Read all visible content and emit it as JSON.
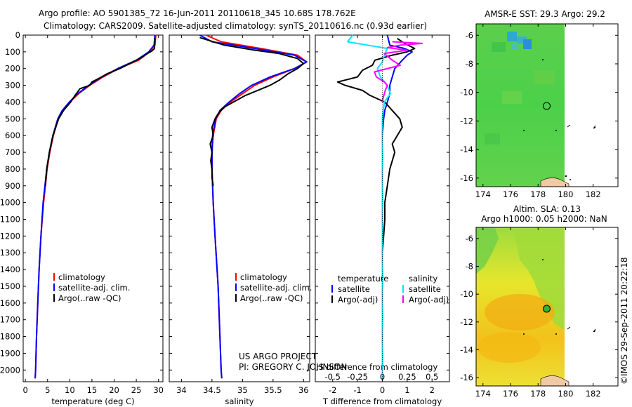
{
  "header": {
    "title_line1": "Argo profile: AO 5901385_72 16-Jun-2011 20110618_345 10.68S 178.762E",
    "title_line2": "Climatology: CARS2009. Satellite-adjusted climatology: synTS_20110616.nc (0.93d earlier)"
  },
  "credits": {
    "project": "US ARGO PROJECT",
    "pi": "PI: GREGORY C. JOHNSON",
    "imos": "©IMOS 29-Sep-2011 20:22:18"
  },
  "colors": {
    "climatology": "#ff0000",
    "satellite": "#0000ff",
    "argo": "#000000",
    "sal_satellite": "#00e5ff",
    "sal_argo": "#ff00ff",
    "sst_green": "#4fd24a",
    "sla_yellow": "#e9e22a",
    "sla_orange": "#f2b400",
    "land": "#f0c9a5"
  },
  "maps": [
    {
      "title": "AMSR-E SST: 29.3 Argo: 29.2",
      "subtitle": "",
      "xticks": [
        "174",
        "176",
        "178",
        "180",
        "182"
      ],
      "yticks": [
        "-6",
        "-8",
        "-10",
        "-12",
        "-14",
        "-16"
      ],
      "xlim": [
        173.5,
        183.8
      ],
      "ylim": [
        -16.6,
        -5.2
      ],
      "data_east_limit": 180.0,
      "argo_position": {
        "lon": 178.762,
        "lat": -10.68
      }
    },
    {
      "title": "Altim. SLA: 0.13",
      "subtitle": "Argo h1000: 0.05 h2000: NaN",
      "xticks": [
        "174",
        "176",
        "178",
        "180",
        "182"
      ],
      "yticks": [
        "-6",
        "-8",
        "-10",
        "-12",
        "-14",
        "-16"
      ],
      "xlim": [
        173.5,
        183.8
      ],
      "ylim": [
        -16.6,
        -5.2
      ],
      "data_east_limit": 180.0,
      "argo_position": {
        "lon": 178.762,
        "lat": -10.68
      }
    }
  ],
  "chart_data": [
    {
      "type": "line",
      "xlabel": "temperature (deg C)",
      "ylabel": "",
      "xlim": [
        -0.5,
        31
      ],
      "ylim": [
        2070,
        0
      ],
      "xticks": [
        0,
        5,
        10,
        15,
        20,
        25,
        30
      ],
      "yticks": [
        0,
        100,
        200,
        300,
        400,
        500,
        600,
        700,
        800,
        900,
        1000,
        1100,
        1200,
        1300,
        1400,
        1500,
        1600,
        1700,
        1800,
        1900,
        2000
      ],
      "legend": {
        "position": "lower-center",
        "entries": [
          "climatology",
          "satellite-adj. clim.",
          "Argo(..raw -QC)"
        ]
      },
      "series": [
        {
          "name": "climatology",
          "color": "#ff0000",
          "y": [
            0,
            60,
            100,
            150,
            200,
            250,
            300,
            350,
            400,
            450,
            500,
            600,
            700,
            800,
            900,
            1000,
            1200,
            1400,
            1600,
            1800,
            2000,
            2050
          ],
          "x": [
            29.4,
            29.2,
            28.0,
            25.5,
            21.0,
            17.5,
            14.5,
            12.0,
            10.0,
            8.4,
            7.4,
            6.3,
            5.5,
            4.9,
            4.5,
            4.1,
            3.5,
            3.1,
            2.8,
            2.5,
            2.3,
            2.2
          ]
        },
        {
          "name": "satellite-adj. clim.",
          "color": "#0000ff",
          "y": [
            0,
            60,
            100,
            150,
            200,
            250,
            300,
            350,
            400,
            450,
            500,
            600,
            700,
            800,
            900,
            1000,
            1200,
            1400,
            1600,
            1800,
            2000,
            2050
          ],
          "x": [
            29.2,
            29.0,
            27.8,
            25.0,
            20.8,
            17.2,
            14.3,
            11.8,
            9.9,
            8.3,
            7.3,
            6.2,
            5.4,
            4.8,
            4.4,
            4.0,
            3.5,
            3.1,
            2.8,
            2.5,
            2.3,
            2.2
          ]
        },
        {
          "name": "Argo(..raw -QC)",
          "color": "#000000",
          "y": [
            15,
            80,
            95,
            110,
            140,
            170,
            200,
            230,
            260,
            280,
            300,
            320,
            360,
            400,
            450,
            500,
            600,
            700,
            800,
            900
          ],
          "x": [
            29.2,
            29.1,
            28.5,
            27.5,
            25.8,
            23.5,
            21.3,
            18.5,
            16.5,
            15.0,
            14.5,
            12.3,
            11.2,
            10.2,
            8.6,
            7.5,
            6.2,
            5.4,
            4.8,
            4.5
          ]
        }
      ]
    },
    {
      "type": "line",
      "xlabel": "salinity",
      "ylabel": "",
      "xlim": [
        33.8,
        36.1
      ],
      "ylim": [
        2070,
        0
      ],
      "xticks": [
        34,
        34.5,
        35,
        35.5,
        36
      ],
      "xticklabels": [
        "34",
        "34.5",
        "35",
        "35.5",
        "36"
      ],
      "legend": {
        "position": "lower-right",
        "entries": [
          "climatology",
          "satellite-adj. clim.",
          "Argo(..raw -QC)"
        ]
      },
      "series": [
        {
          "name": "climatology",
          "color": "#ff0000",
          "y": [
            0,
            40,
            80,
            120,
            160,
            200,
            250,
            300,
            350,
            400,
            450,
            500,
            600,
            700,
            800,
            1000,
            1200,
            1500,
            1800,
            2000,
            2050
          ],
          "x": [
            34.4,
            34.65,
            35.3,
            35.9,
            36.05,
            35.85,
            35.5,
            35.2,
            35.0,
            34.8,
            34.65,
            34.57,
            34.52,
            34.5,
            34.5,
            34.52,
            34.55,
            34.6,
            34.63,
            34.65,
            34.66
          ]
        },
        {
          "name": "satellite-adj. clim.",
          "color": "#0000ff",
          "y": [
            0,
            40,
            80,
            120,
            160,
            200,
            250,
            300,
            350,
            400,
            450,
            500,
            600,
            700,
            800,
            1000,
            1200,
            1500,
            1800,
            2000,
            2050
          ],
          "x": [
            34.3,
            34.5,
            35.2,
            35.85,
            36.05,
            35.85,
            35.45,
            35.15,
            34.95,
            34.78,
            34.63,
            34.56,
            34.51,
            34.5,
            34.5,
            34.52,
            34.55,
            34.6,
            34.63,
            34.65,
            34.66
          ]
        },
        {
          "name": "Argo(..raw -QC)",
          "color": "#000000",
          "y": [
            15,
            60,
            90,
            110,
            140,
            170,
            200,
            230,
            270,
            300,
            330,
            360,
            400,
            430,
            470,
            500,
            550,
            600,
            650,
            700,
            750,
            800,
            850,
            900
          ],
          "x": [
            34.3,
            34.7,
            35.2,
            35.6,
            35.9,
            36.0,
            35.9,
            35.75,
            35.6,
            35.45,
            35.25,
            35.05,
            34.85,
            34.7,
            34.6,
            34.55,
            34.5,
            34.52,
            34.47,
            34.5,
            34.48,
            34.5,
            34.5,
            34.52
          ]
        }
      ]
    },
    {
      "type": "line",
      "xlabel": "T difference from climatology",
      "xlabel_top": "S difference from climatology",
      "ylabel": "",
      "xlim": [
        -2.7,
        2.7
      ],
      "ylim": [
        2070,
        0
      ],
      "xticks": [
        -2,
        -1,
        0,
        1,
        2
      ],
      "xticks_s": [
        "-0.5",
        "-0.25",
        "0",
        "0.25",
        "0.5"
      ],
      "legend": {
        "position": "lower-center",
        "temperature_header": "temperature",
        "salinity_header": "salinity",
        "entries": [
          "satellite",
          "Argo(-adj)",
          "satellite",
          "Argo(-adj)"
        ]
      },
      "series": [
        {
          "name": "satellite",
          "variable": "temperature",
          "color": "#0000ff",
          "y": [
            0,
            60,
            80,
            100,
            120,
            150,
            200,
            250,
            300,
            350,
            400,
            450,
            500,
            600,
            800,
            1000,
            1500,
            2050
          ],
          "x": [
            0.2,
            0.3,
            0.9,
            1.2,
            1.0,
            0.8,
            0.5,
            0.4,
            0.3,
            0.3,
            0.2,
            0.1,
            0.05,
            0.0,
            0.0,
            0.0,
            0.0,
            0.0
          ]
        },
        {
          "name": "Argo(-adj)",
          "variable": "temperature",
          "color": "#000000",
          "y": [
            20,
            50,
            80,
            100,
            120,
            150,
            180,
            210,
            250,
            280,
            300,
            330,
            360,
            400,
            450,
            500,
            550,
            600,
            650,
            700,
            800,
            900,
            1000,
            1100,
            1200,
            1300
          ],
          "x": [
            0.6,
            0.9,
            1.3,
            1.0,
            0.4,
            -0.3,
            -0.4,
            -0.8,
            -1.0,
            -1.8,
            -1.5,
            -0.8,
            -0.5,
            0.1,
            0.4,
            0.7,
            0.8,
            0.6,
            0.4,
            0.5,
            0.3,
            0.2,
            0.1,
            0.1,
            0.05,
            0.0
          ]
        },
        {
          "name": "satellite",
          "variable": "salinity",
          "color": "#00e5ff",
          "y": [
            0,
            40,
            60,
            80,
            120,
            160,
            200,
            250,
            300,
            350,
            400,
            500,
            600,
            800,
            1000,
            1500,
            2050
          ],
          "x": [
            -0.3,
            -0.35,
            -0.15,
            0.05,
            0.02,
            0.0,
            -0.05,
            -0.02,
            0.05,
            0.08,
            0.02,
            0.0,
            0.0,
            0.0,
            0.0,
            0.0,
            0.0
          ]
        },
        {
          "name": "Argo(-adj)",
          "variable": "salinity",
          "color": "#ff00ff",
          "y": [
            40,
            50,
            60,
            75,
            90,
            110,
            150,
            180,
            220,
            250,
            280,
            300,
            330,
            370,
            400
          ],
          "x": [
            0.1,
            0.4,
            0.18,
            0.05,
            0.25,
            0.02,
            0.1,
            0.18,
            -0.08,
            -0.06,
            0.02,
            0.05,
            0.03,
            0.01,
            0.0
          ]
        }
      ]
    }
  ]
}
